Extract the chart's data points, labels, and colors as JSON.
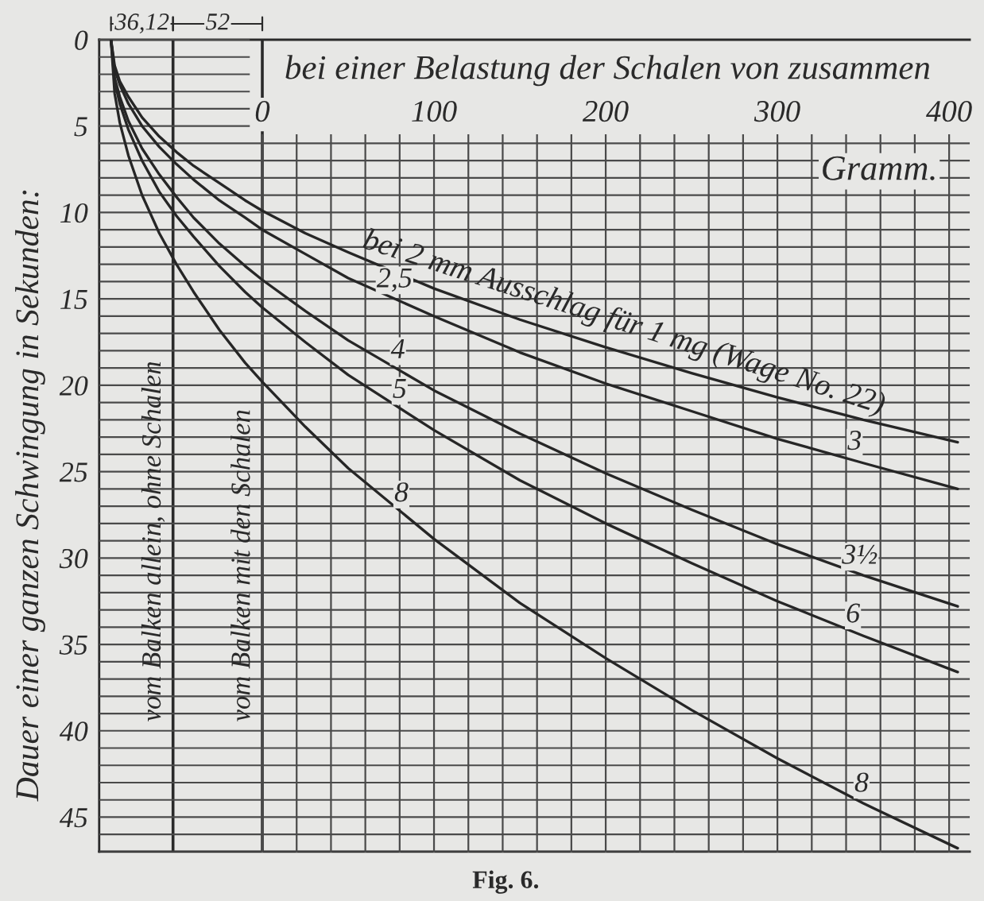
{
  "chart_data": {
    "type": "line",
    "xlabel": "bei einer Belastung der Schalen von zusammen",
    "ylabel": "Dauer einer ganzen Schwingung in Sekunden:",
    "x": [
      -88.12,
      -86,
      -83,
      -78,
      -70,
      -60,
      -50,
      -40,
      -25,
      -10,
      0,
      25,
      50,
      100,
      150,
      200,
      250,
      300,
      350,
      405
    ],
    "series": [
      {
        "color": "#262626",
        "values": [
          0,
          1.5,
          2.4,
          3.3,
          4.5,
          5.6,
          6.5,
          7.3,
          8.3,
          9.3,
          9.9,
          11.2,
          12.3,
          14.4,
          16.2,
          17.8,
          19.3,
          20.7,
          22.0,
          23.3
        ]
      },
      {
        "color": "#262626",
        "values": [
          0,
          1.7,
          2.6,
          3.7,
          5.0,
          6.2,
          7.2,
          8.1,
          9.3,
          10.3,
          11.0,
          12.4,
          13.8,
          16.0,
          18.1,
          19.9,
          21.5,
          23.1,
          24.5,
          26.0
        ]
      },
      {
        "color": "#262626",
        "values": [
          0,
          2.2,
          3.3,
          4.7,
          6.3,
          7.8,
          9.1,
          10.3,
          11.8,
          13.1,
          13.9,
          15.7,
          17.4,
          20.3,
          22.8,
          25.1,
          27.2,
          29.2,
          31.0,
          32.8
        ]
      },
      {
        "color": "#262626",
        "values": [
          0,
          2.4,
          3.7,
          5.2,
          7.0,
          8.8,
          10.2,
          11.4,
          13.1,
          14.6,
          15.5,
          17.5,
          19.4,
          22.6,
          25.5,
          28.0,
          30.3,
          32.5,
          34.5,
          36.6
        ]
      },
      {
        "color": "#262626",
        "values": [
          0,
          3.1,
          4.8,
          6.7,
          9.0,
          11.2,
          13.0,
          14.6,
          16.8,
          18.7,
          19.8,
          22.4,
          24.8,
          28.9,
          32.6,
          35.8,
          38.8,
          41.6,
          44.2,
          46.8
        ]
      }
    ],
    "xlim": [
      -95,
      412
    ],
    "ylim": [
      47,
      0
    ],
    "xticks": [
      0,
      {
        "value": 20,
        "label": null
      },
      {
        "value": 40,
        "label": null
      },
      {
        "value": 60,
        "label": null
      },
      {
        "value": 80,
        "label": null
      },
      100,
      {
        "value": 120,
        "label": null
      },
      {
        "value": 140,
        "label": null
      },
      {
        "value": 160,
        "label": null
      },
      {
        "value": 180,
        "label": null
      },
      200,
      {
        "value": 220,
        "label": null
      },
      {
        "value": 240,
        "label": null
      },
      {
        "value": 260,
        "label": null
      },
      {
        "value": 280,
        "label": null
      },
      300,
      {
        "value": 320,
        "label": null
      },
      {
        "value": 340,
        "label": null
      },
      {
        "value": 360,
        "label": null
      },
      {
        "value": 380,
        "label": null
      },
      400
    ],
    "yticks": [
      0,
      {
        "value": 1,
        "label": null
      },
      {
        "value": 2,
        "label": null
      },
      {
        "value": 3,
        "label": null
      },
      {
        "value": 4,
        "label": null
      },
      5,
      {
        "value": 6,
        "label": null
      },
      {
        "value": 7,
        "label": null
      },
      {
        "value": 8,
        "label": null
      },
      {
        "value": 9,
        "label": null
      },
      10,
      {
        "value": 11,
        "label": null
      },
      {
        "value": 12,
        "label": null
      },
      {
        "value": 13,
        "label": null
      },
      {
        "value": 14,
        "label": null
      },
      15,
      {
        "value": 16,
        "label": null
      },
      {
        "value": 17,
        "label": null
      },
      {
        "value": 18,
        "label": null
      },
      {
        "value": 19,
        "label": null
      },
      20,
      {
        "value": 21,
        "label": null
      },
      {
        "value": 22,
        "label": null
      },
      {
        "value": 23,
        "label": null
      },
      {
        "value": 24,
        "label": null
      },
      25,
      {
        "value": 26,
        "label": null
      },
      {
        "value": 27,
        "label": null
      },
      {
        "value": 28,
        "label": null
      },
      {
        "value": 29,
        "label": null
      },
      30,
      {
        "value": 31,
        "label": null
      },
      {
        "value": 32,
        "label": null
      },
      {
        "value": 33,
        "label": null
      },
      {
        "value": 34,
        "label": null
      },
      35,
      {
        "value": 36,
        "label": null
      },
      {
        "value": 37,
        "label": null
      },
      {
        "value": 38,
        "label": null
      },
      {
        "value": 39,
        "label": null
      },
      40,
      {
        "value": 41,
        "label": null
      },
      {
        "value": 42,
        "label": null
      },
      {
        "value": 43,
        "label": null
      },
      {
        "value": 44,
        "label": null
      },
      45,
      {
        "value": 46,
        "label": null
      },
      {
        "value": 47,
        "label": null
      }
    ],
    "grid": true,
    "ref_lines": [
      {
        "axis": "x",
        "value": -52,
        "label": "vom Balken allein, ohne Schalen"
      },
      {
        "axis": "x",
        "value": 0,
        "label": "vom Balken mit den Schalen"
      }
    ],
    "annotations": [
      "36,12",
      "52",
      {
        "text": "bei 2 mm Ausschlag für 1 mg (Wage No. 22)",
        "x": 208,
        "y": 18.1
      },
      {
        "text": "2,5",
        "x": 77,
        "y": 15.0
      },
      {
        "text": "4",
        "x": 79,
        "y": 19.1
      },
      {
        "text": "5",
        "x": 80,
        "y": 21.4
      },
      {
        "text": "8",
        "x": 81,
        "y": 27.4
      },
      {
        "text": "3",
        "x": 345,
        "y": 24.4
      },
      {
        "text": "3½",
        "x": 348,
        "y": 31.0
      },
      {
        "text": "6",
        "x": 344,
        "y": 34.4
      },
      {
        "text": "8",
        "x": 349,
        "y": 44.2
      },
      "Gramm.",
      "Fig. 6."
    ]
  }
}
